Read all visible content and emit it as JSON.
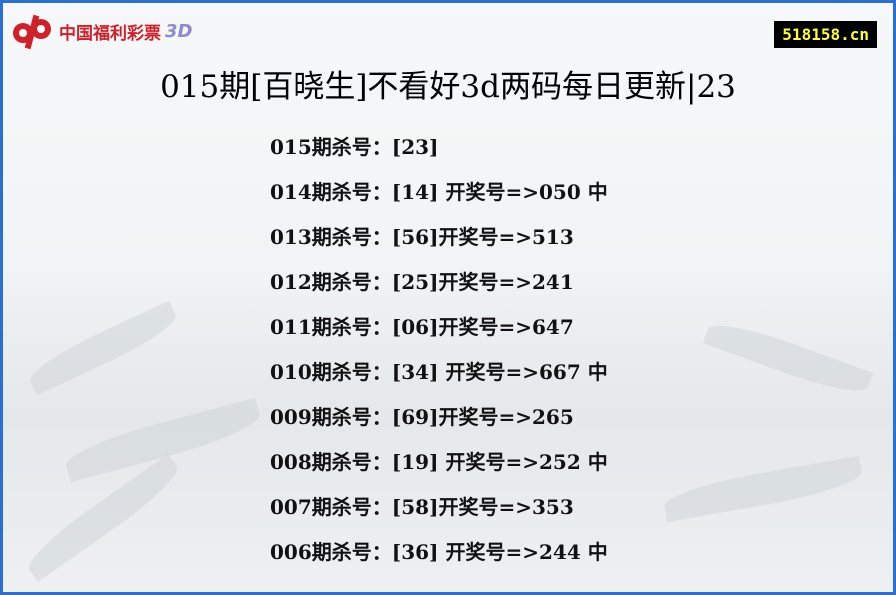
{
  "logo": {
    "text": "中国福利彩票",
    "suffix": "3D"
  },
  "site": "518158.cn",
  "title": "015期[百晓生]不看好3d两码每日更新|23",
  "rows": [
    "015期杀号：[23]",
    "014期杀号：[14] 开奖号=>050 中",
    "013期杀号：[56]开奖号=>513",
    "012期杀号：[25]开奖号=>241",
    "011期杀号：[06]开奖号=>647",
    "010期杀号：[34] 开奖号=>667 中",
    "009期杀号：[69]开奖号=>265",
    "008期杀号：[19] 开奖号=>252 中",
    "007期杀号：[58]开奖号=>353",
    "006期杀号：[36] 开奖号=>244 中"
  ]
}
